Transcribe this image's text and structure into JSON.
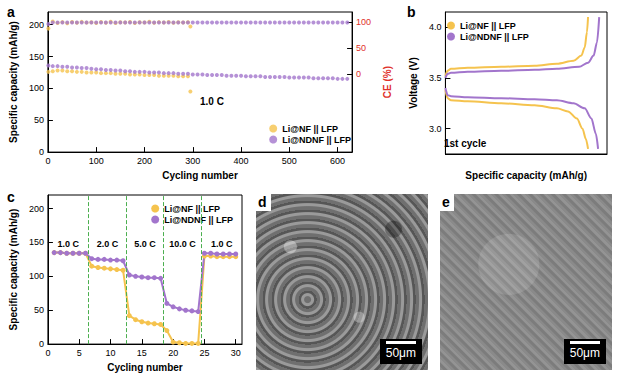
{
  "chart_data": [
    {
      "title": "a",
      "type": "scatter",
      "marker": "circle",
      "grid": false,
      "legend": "lower right",
      "x_label": "Cycling number",
      "y_label": "Specific capacity (mAh/g)",
      "y2_label": "CE (%)",
      "xlim": [
        0,
        630
      ],
      "xticks": [
        0,
        100,
        200,
        300,
        400,
        500,
        600
      ],
      "ylim": [
        0,
        220
      ],
      "yticks": [
        0,
        50,
        100,
        150,
        200
      ],
      "y2lim": [
        -150,
        120
      ],
      "y2ticks": [
        0,
        50,
        100
      ],
      "annotations": [
        "1.0 C"
      ],
      "series": [
        {
          "name": "Li@NF || LFP",
          "color": "#f5c34e",
          "x": [
            1,
            10,
            20,
            30,
            40,
            50,
            60,
            70,
            80,
            90,
            100,
            110,
            120,
            130,
            140,
            150,
            160,
            170,
            180,
            190,
            200,
            210,
            220,
            230,
            240,
            250,
            260,
            270,
            280,
            290,
            295
          ],
          "values": [
            126,
            127,
            128,
            128,
            127,
            127,
            126,
            126,
            125,
            125,
            125,
            124,
            124,
            124,
            123,
            123,
            123,
            122,
            122,
            122,
            121,
            121,
            121,
            120,
            120,
            120,
            120,
            119,
            119,
            119,
            95
          ]
        },
        {
          "name": "Li@NDNF || LFP",
          "color": "#a275cc",
          "x": [
            1,
            10,
            20,
            30,
            40,
            50,
            60,
            70,
            80,
            90,
            100,
            110,
            120,
            130,
            140,
            150,
            160,
            170,
            180,
            190,
            200,
            210,
            220,
            230,
            240,
            250,
            260,
            270,
            280,
            290,
            300,
            310,
            320,
            330,
            340,
            350,
            360,
            370,
            380,
            390,
            400,
            410,
            420,
            430,
            440,
            450,
            460,
            470,
            480,
            490,
            500,
            510,
            520,
            530,
            540,
            550,
            560,
            570,
            580,
            590,
            600,
            610,
            620
          ],
          "values": [
            136,
            135,
            135,
            134,
            134,
            133,
            133,
            132,
            132,
            131,
            130,
            130,
            129,
            129,
            128,
            128,
            127,
            127,
            126,
            126,
            126,
            125,
            125,
            125,
            124,
            124,
            124,
            123,
            123,
            123,
            122,
            122,
            122,
            121,
            121,
            121,
            121,
            120,
            120,
            120,
            120,
            119,
            119,
            119,
            119,
            118,
            118,
            118,
            118,
            118,
            117,
            117,
            117,
            117,
            117,
            116,
            116,
            116,
            116,
            116,
            115,
            115,
            115
          ]
        },
        {
          "name": "Li@NF || LFP",
          "color": "#f5c34e",
          "axis": "y2",
          "x": [
            1,
            10,
            20,
            30,
            40,
            50,
            60,
            70,
            80,
            90,
            100,
            110,
            120,
            130,
            140,
            150,
            160,
            170,
            180,
            190,
            200,
            210,
            220,
            230,
            240,
            250,
            260,
            270,
            280,
            290,
            295
          ],
          "values": [
            88,
            101.5,
            99,
            100.5,
            98.5,
            100.8,
            99.2,
            101,
            99.5,
            100.3,
            98.8,
            100.6,
            99.4,
            101.2,
            99,
            100.4,
            99.7,
            100.9,
            98.9,
            100.2,
            99.6,
            101.1,
            99.3,
            100.5,
            99.8,
            100.7,
            99.1,
            100.3,
            99.6,
            100.1,
            92
          ]
        },
        {
          "name": "Li@NDNF || LFP",
          "color": "#a275cc",
          "axis": "y2",
          "x": [
            1,
            10,
            20,
            30,
            40,
            50,
            60,
            70,
            80,
            90,
            100,
            110,
            120,
            130,
            140,
            150,
            160,
            170,
            180,
            190,
            200,
            210,
            220,
            230,
            240,
            250,
            260,
            270,
            280,
            290,
            300,
            310,
            320,
            330,
            340,
            350,
            360,
            370,
            380,
            390,
            400,
            410,
            420,
            430,
            440,
            450,
            460,
            470,
            480,
            490,
            500,
            510,
            520,
            530,
            540,
            550,
            560,
            570,
            580,
            590,
            600,
            610,
            620
          ],
          "values": [
            97,
            99.8,
            99.7,
            99.9,
            99.8,
            99.8,
            99.9,
            99.7,
            99.8,
            99.9,
            99.8,
            99.8,
            99.7,
            99.9,
            99.8,
            99.8,
            99.9,
            99.7,
            99.8,
            99.9,
            99.8,
            99.8,
            99.7,
            99.9,
            99.8,
            99.8,
            99.9,
            99.7,
            99.8,
            99.9,
            99.8,
            99.8,
            99.7,
            99.9,
            99.8,
            99.8,
            99.9,
            99.7,
            99.8,
            99.9,
            99.8,
            99.8,
            99.7,
            99.9,
            99.8,
            99.8,
            99.9,
            99.7,
            99.8,
            99.9,
            99.8,
            99.8,
            99.7,
            99.9,
            99.8,
            99.8,
            99.9,
            99.7,
            99.8,
            99.9,
            99.8,
            99.8,
            99.9
          ]
        }
      ]
    },
    {
      "title": "b",
      "type": "line",
      "grid": false,
      "legend": "upper left",
      "tick_labels": "y",
      "x_label": "Specific capacity (mAh/g)",
      "y_label": "Voltage (V)",
      "xlim": [
        0,
        145
      ],
      "ylim": [
        2.75,
        4.15
      ],
      "yticks": [
        {
          "value": 3,
          "label": "3.0"
        },
        3.5,
        {
          "value": 4,
          "label": "4.0"
        }
      ],
      "annotations": [
        "1st cycle"
      ],
      "series": [
        {
          "name": "Li@NF || LFP",
          "color": "#f5c34e",
          "values": [
            [
              0,
              3.52
            ],
            [
              2,
              3.57
            ],
            [
              5,
              3.59
            ],
            [
              20,
              3.6
            ],
            [
              50,
              3.61
            ],
            [
              80,
              3.62
            ],
            [
              100,
              3.64
            ],
            [
              115,
              3.67
            ],
            [
              122,
              3.72
            ],
            [
              125,
              3.8
            ],
            [
              127,
              3.95
            ],
            [
              128,
              4.1
            ],
            null,
            [
              0,
              3.38
            ],
            [
              2,
              3.3
            ],
            [
              5,
              3.28
            ],
            [
              20,
              3.27
            ],
            [
              50,
              3.25
            ],
            [
              80,
              3.23
            ],
            [
              100,
              3.2
            ],
            [
              110,
              3.17
            ],
            [
              118,
              3.1
            ],
            [
              123,
              3.0
            ],
            [
              126,
              2.9
            ],
            [
              128,
              2.8
            ]
          ]
        },
        {
          "name": "Li@NDNF || LFP",
          "color": "#a275cc",
          "values": [
            [
              0,
              3.5
            ],
            [
              2,
              3.54
            ],
            [
              5,
              3.55
            ],
            [
              20,
              3.56
            ],
            [
              50,
              3.57
            ],
            [
              80,
              3.58
            ],
            [
              100,
              3.59
            ],
            [
              120,
              3.61
            ],
            [
              128,
              3.65
            ],
            [
              133,
              3.72
            ],
            [
              136,
              3.85
            ],
            [
              138,
              4.1
            ],
            null,
            [
              0,
              3.4
            ],
            [
              2,
              3.33
            ],
            [
              5,
              3.32
            ],
            [
              20,
              3.31
            ],
            [
              50,
              3.3
            ],
            [
              80,
              3.29
            ],
            [
              100,
              3.28
            ],
            [
              115,
              3.25
            ],
            [
              125,
              3.2
            ],
            [
              131,
              3.1
            ],
            [
              135,
              2.95
            ],
            [
              137,
              2.8
            ]
          ]
        }
      ]
    },
    {
      "title": "c",
      "type": "line",
      "marker": "circle",
      "grid": false,
      "legend": "upper right",
      "x_label": "Cycling number",
      "y_label": "Specific capacity (mAh/g)",
      "xlim": [
        0,
        31
      ],
      "xticks": [
        0,
        5,
        10,
        15,
        20,
        25,
        30
      ],
      "ylim": [
        0,
        220
      ],
      "yticks": [
        0,
        50,
        100,
        150,
        200
      ],
      "rate_boundaries": [
        6.5,
        12.5,
        18.5,
        24.5
      ],
      "rate_labels": [
        "1.0 C",
        "2.0 C",
        "5.0 C",
        "10.0 C",
        "1.0 C"
      ],
      "x": [
        1,
        2,
        3,
        4,
        5,
        6,
        7,
        8,
        9,
        10,
        11,
        12,
        13,
        14,
        15,
        16,
        17,
        18,
        19,
        20,
        21,
        22,
        23,
        24,
        25,
        26,
        27,
        28,
        29,
        30
      ],
      "series": [
        {
          "name": "Li@NF || LFP",
          "color": "#f5c34e",
          "values": [
            135,
            135,
            134,
            134,
            134,
            134,
            115,
            113,
            112,
            111,
            110,
            109,
            42,
            36,
            33,
            31,
            30,
            29,
            20,
            3,
            2,
            1,
            1,
            1,
            130,
            130,
            129,
            129,
            129,
            129
          ]
        },
        {
          "name": "Li@NDNF || LFP",
          "color": "#a275cc",
          "values": [
            135,
            135,
            134,
            134,
            134,
            134,
            126,
            125,
            125,
            124,
            124,
            123,
            102,
            100,
            99,
            98,
            98,
            97,
            60,
            55,
            52,
            50,
            49,
            48,
            134,
            134,
            133,
            133,
            133,
            133
          ]
        }
      ]
    }
  ],
  "images": [
    {
      "panel": "d",
      "scale_bar": "50μm"
    },
    {
      "panel": "e",
      "scale_bar": "50μm"
    }
  ]
}
